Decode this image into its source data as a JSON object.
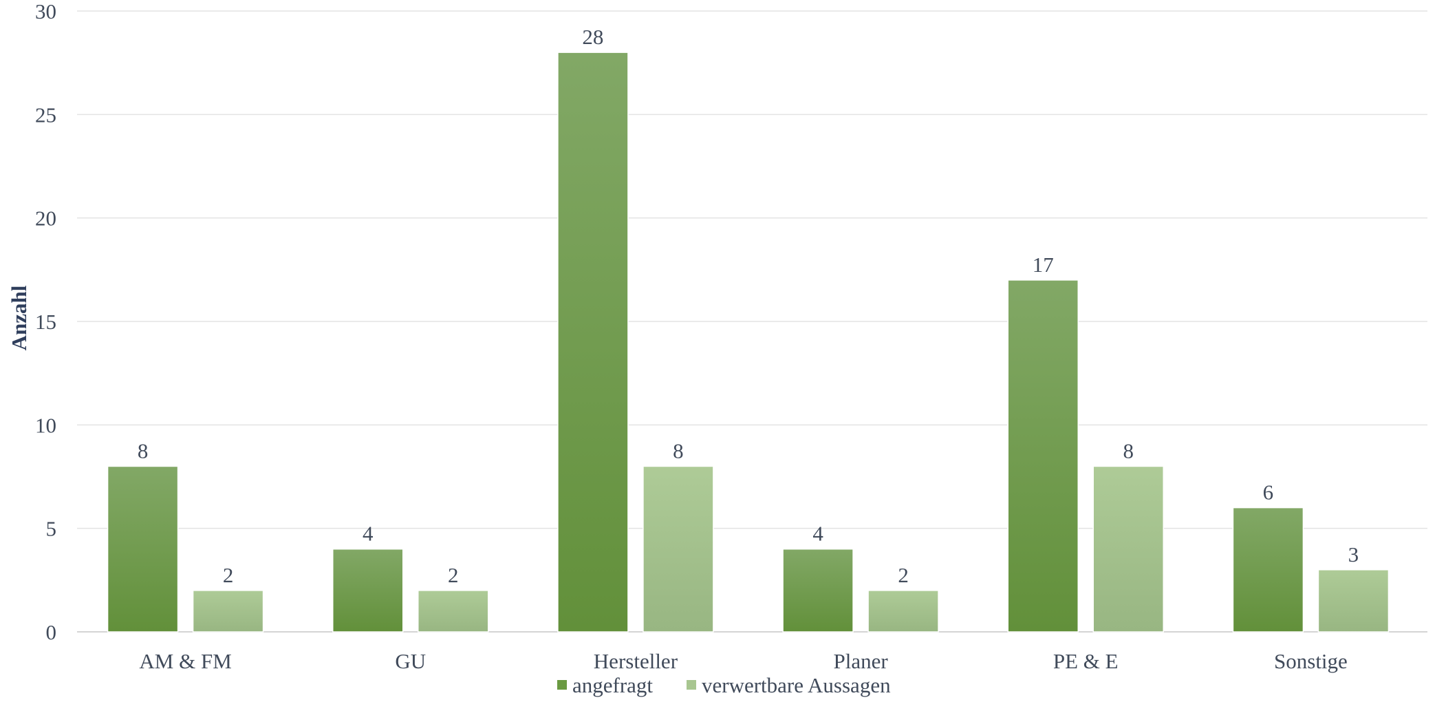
{
  "chart_data": {
    "type": "bar",
    "title": "",
    "xlabel": "",
    "ylabel": "Anzahl",
    "ylim": [
      0,
      30
    ],
    "yticks": [
      0,
      5,
      10,
      15,
      20,
      25,
      30
    ],
    "grid": true,
    "legend_position": "bottom",
    "categories": [
      "AM & FM",
      "GU",
      "Hersteller",
      "Planer",
      "PE & E",
      "Sonstige"
    ],
    "series": [
      {
        "name": "angefragt",
        "values": [
          8,
          4,
          28,
          4,
          17,
          6
        ],
        "color": "#6a9a42",
        "color_top": "#82a866",
        "color_bottom": "#62903a"
      },
      {
        "name": "verwertbare Aussagen",
        "values": [
          2,
          2,
          8,
          2,
          8,
          3
        ],
        "color": "#a8c690",
        "color_top": "#aecb97",
        "color_bottom": "#98b682"
      }
    ]
  }
}
